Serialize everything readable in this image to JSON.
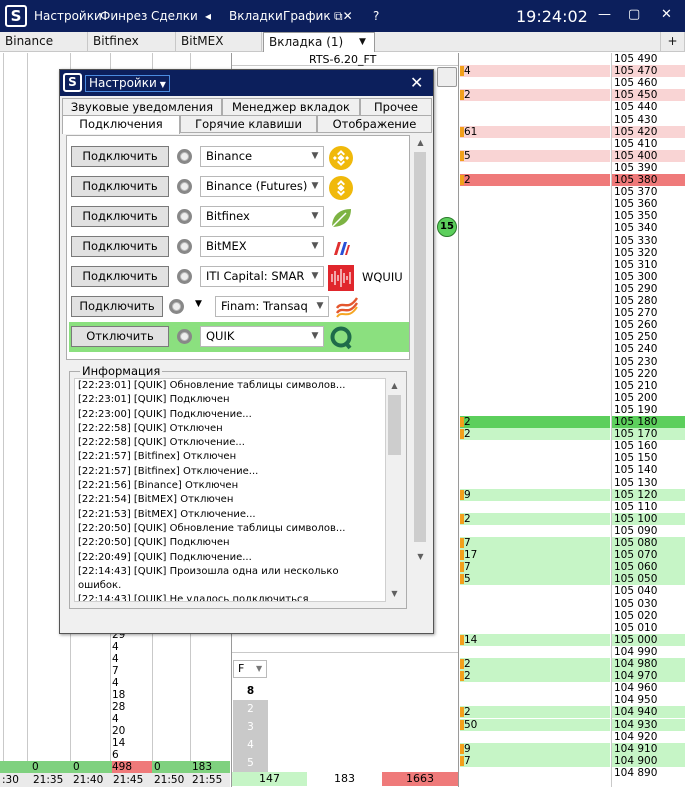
{
  "titlebar": {
    "menu": [
      "Настройки",
      "Финрез",
      "Сделки",
      "◂",
      "Вкладки",
      "График",
      "⧉✕",
      "?"
    ],
    "clock": "19:24:02",
    "win_buttons": [
      "—",
      "▢",
      "✕"
    ]
  },
  "tabs": [
    {
      "label": "Binance"
    },
    {
      "label": "Bitfinex"
    },
    {
      "label": "BitMEX"
    },
    {
      "label": "Вкладка (1)"
    }
  ],
  "tab_add": "+",
  "instrument": "RTS-6.20_FT",
  "ladder": [
    {
      "vol": "",
      "price": "105 490",
      "bg": ""
    },
    {
      "vol": "4",
      "price": "105 470",
      "bg": "#f9d4d4"
    },
    {
      "vol": "",
      "price": "105 460",
      "bg": ""
    },
    {
      "vol": "2",
      "price": "105 450",
      "bg": "#f9d4d4"
    },
    {
      "vol": "",
      "price": "105 440",
      "bg": ""
    },
    {
      "vol": "",
      "price": "105 430",
      "bg": ""
    },
    {
      "vol": "61",
      "price": "105 420",
      "bg": "#f9d4d4"
    },
    {
      "vol": "",
      "price": "105 410",
      "bg": ""
    },
    {
      "vol": "5",
      "price": "105 400",
      "bg": "#f9d4d4"
    },
    {
      "vol": "",
      "price": "105 390",
      "bg": ""
    },
    {
      "vol": "2",
      "price": "105 380",
      "bg": "#ef7a7a"
    },
    {
      "vol": "",
      "price": "105 370",
      "bg": ""
    },
    {
      "vol": "",
      "price": "105 360",
      "bg": ""
    },
    {
      "vol": "",
      "price": "105 350",
      "bg": ""
    },
    {
      "vol": "",
      "price": "105 340",
      "bg": ""
    },
    {
      "vol": "",
      "price": "105 330",
      "bg": ""
    },
    {
      "vol": "",
      "price": "105 320",
      "bg": ""
    },
    {
      "vol": "",
      "price": "105 310",
      "bg": ""
    },
    {
      "vol": "",
      "price": "105 300",
      "bg": ""
    },
    {
      "vol": "",
      "price": "105 290",
      "bg": ""
    },
    {
      "vol": "",
      "price": "105 280",
      "bg": ""
    },
    {
      "vol": "",
      "price": "105 270",
      "bg": ""
    },
    {
      "vol": "",
      "price": "105 260",
      "bg": ""
    },
    {
      "vol": "",
      "price": "105 250",
      "bg": ""
    },
    {
      "vol": "",
      "price": "105 240",
      "bg": ""
    },
    {
      "vol": "",
      "price": "105 230",
      "bg": ""
    },
    {
      "vol": "",
      "price": "105 220",
      "bg": ""
    },
    {
      "vol": "",
      "price": "105 210",
      "bg": ""
    },
    {
      "vol": "",
      "price": "105 200",
      "bg": ""
    },
    {
      "vol": "",
      "price": "105 190",
      "bg": ""
    },
    {
      "vol": "2",
      "price": "105 180",
      "bg": "#5ccf5c"
    },
    {
      "vol": "2",
      "price": "105 170",
      "bg": "#c6f5c6"
    },
    {
      "vol": "",
      "price": "105 160",
      "bg": ""
    },
    {
      "vol": "",
      "price": "105 150",
      "bg": ""
    },
    {
      "vol": "",
      "price": "105 140",
      "bg": ""
    },
    {
      "vol": "",
      "price": "105 130",
      "bg": ""
    },
    {
      "vol": "9",
      "price": "105 120",
      "bg": "#c6f5c6"
    },
    {
      "vol": "",
      "price": "105 110",
      "bg": ""
    },
    {
      "vol": "2",
      "price": "105 100",
      "bg": "#c6f5c6"
    },
    {
      "vol": "",
      "price": "105 090",
      "bg": ""
    },
    {
      "vol": "7",
      "price": "105 080",
      "bg": "#c6f5c6"
    },
    {
      "vol": "17",
      "price": "105 070",
      "bg": "#c6f5c6"
    },
    {
      "vol": "7",
      "price": "105 060",
      "bg": "#c6f5c6"
    },
    {
      "vol": "5",
      "price": "105 050",
      "bg": "#c6f5c6"
    },
    {
      "vol": "",
      "price": "105 040",
      "bg": ""
    },
    {
      "vol": "",
      "price": "105 030",
      "bg": ""
    },
    {
      "vol": "",
      "price": "105 020",
      "bg": ""
    },
    {
      "vol": "",
      "price": "105 010",
      "bg": ""
    },
    {
      "vol": "14",
      "price": "105 000",
      "bg": "#c6f5c6"
    },
    {
      "vol": "",
      "price": "104 990",
      "bg": ""
    },
    {
      "vol": "2",
      "price": "104 980",
      "bg": "#c6f5c6"
    },
    {
      "vol": "2",
      "price": "104 970",
      "bg": "#c6f5c6"
    },
    {
      "vol": "",
      "price": "104 960",
      "bg": ""
    },
    {
      "vol": "",
      "price": "104 950",
      "bg": ""
    },
    {
      "vol": "2",
      "price": "104 940",
      "bg": "#c6f5c6"
    },
    {
      "vol": "50",
      "price": "104 930",
      "bg": "#c6f5c6"
    },
    {
      "vol": "",
      "price": "104 920",
      "bg": ""
    },
    {
      "vol": "9",
      "price": "104 910",
      "bg": "#c6f5c6"
    },
    {
      "vol": "7",
      "price": "104 900",
      "bg": "#c6f5c6"
    },
    {
      "vol": "",
      "price": "104 890",
      "bg": ""
    }
  ],
  "marker_badge": "15",
  "bottom_col_values": [
    "29",
    "4",
    "4",
    "7",
    "4",
    "18",
    "28",
    "4",
    "20",
    "14",
    "6"
  ],
  "status_row": [
    "0",
    "0",
    "0",
    "498",
    "0",
    "183"
  ],
  "time_row": [
    ":30",
    "21:35",
    "21:40",
    "21:45",
    "21:50",
    "21:55"
  ],
  "totals": [
    "147",
    "183",
    "1663"
  ],
  "qty_selector": "F",
  "qty_options": [
    "8",
    "2",
    "3",
    "4",
    "5"
  ],
  "dialog": {
    "title": "Настройки",
    "tabs_row1": [
      "Звуковые уведомления",
      "Менеджер вкладок",
      "Прочее"
    ],
    "tabs_row2": [
      "Подключения",
      "Горячие клавиши",
      "Отображение"
    ],
    "connections": [
      {
        "button": "Подключить",
        "exchange": "Binance",
        "extra": "",
        "active": false,
        "icon": "binance-logo-icon"
      },
      {
        "button": "Подключить",
        "exchange": "Binance (Futures)",
        "extra": "",
        "active": false,
        "icon": "binance-futures-logo-icon"
      },
      {
        "button": "Подключить",
        "exchange": "Bitfinex",
        "extra": "",
        "active": false,
        "icon": "bitfinex-logo-icon"
      },
      {
        "button": "Подключить",
        "exchange": "BitMEX",
        "extra": "",
        "active": false,
        "icon": "bitmex-logo-icon"
      },
      {
        "button": "Подключить",
        "exchange": "ITI Capital: SMAR",
        "extra": "WQUIU",
        "active": false,
        "icon": "iti-capital-logo-icon"
      },
      {
        "button": "Подключить",
        "exchange": "Finam: Transaq",
        "extra": "",
        "active": false,
        "icon": "finam-logo-icon"
      },
      {
        "button": "Отключить",
        "exchange": "QUIK",
        "extra": "",
        "active": true,
        "icon": "quik-logo-icon"
      }
    ],
    "info_label": "Информация",
    "log": [
      "[22:23:01] [QUIK] Обновление таблицы символов...",
      "[22:23:01] [QUIK] Подключен",
      "[22:23:00] [QUIK] Подключение...",
      "[22:22:58] [QUIK] Отключен",
      "[22:22:58] [QUIK] Отключение...",
      "[22:21:57] [Bitfinex] Отключен",
      "[22:21:57] [Bitfinex] Отключение...",
      "[22:21:56] [Binance] Отключен",
      "[22:21:54] [BitMEX] Отключен",
      "[22:21:53] [BitMEX] Отключение...",
      "[22:20:50] [QUIK] Обновление таблицы символов...",
      "[22:20:50] [QUIK] Подключен",
      "[22:20:49] [QUIK] Подключение...",
      "[22:14:43] [QUIK] Произошла одна или несколько ошибок.",
      "[22:14:43] [QUIK] Не удалось подключиться"
    ]
  },
  "colors": {
    "titlebar": "#0c1f5c",
    "connected": "#8be07f",
    "ask": "#f9d4d4",
    "bid": "#c6f5c6"
  }
}
